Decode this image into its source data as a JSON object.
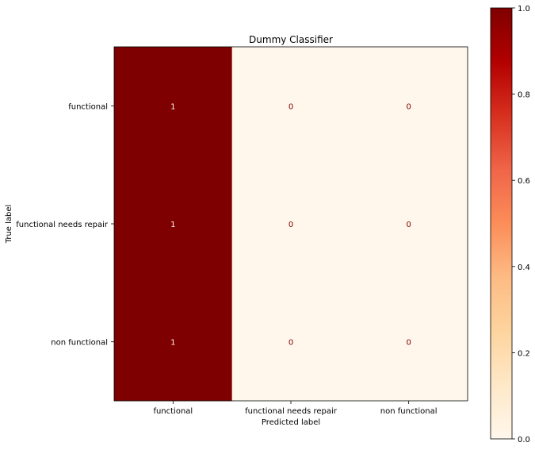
{
  "chart_data": {
    "type": "heatmap",
    "title": "Dummy Classifier",
    "xlabel": "Predicted label",
    "ylabel": "True label",
    "x_categories": [
      "functional",
      "functional needs repair",
      "non functional"
    ],
    "y_categories": [
      "functional",
      "functional needs repair",
      "non functional"
    ],
    "values": [
      [
        1,
        0,
        0
      ],
      [
        1,
        0,
        0
      ],
      [
        1,
        0,
        0
      ]
    ],
    "value_labels": [
      [
        "1",
        "0",
        "0"
      ],
      [
        "1",
        "0",
        "0"
      ],
      [
        "1",
        "0",
        "0"
      ]
    ],
    "colormap": "OrRd",
    "vmin": 0,
    "vmax": 1,
    "colors": {
      "high": "#7f0000",
      "low": "#fff7ec",
      "text_on_high": "#fff7ec",
      "text_on_low": "#7f0000"
    },
    "colorbar": {
      "ticks": [
        0.0,
        0.2,
        0.4,
        0.6,
        0.8,
        1.0
      ],
      "tick_labels": [
        "0.0",
        "0.2",
        "0.4",
        "0.6",
        "0.8",
        "1.0"
      ]
    },
    "grid": false
  }
}
